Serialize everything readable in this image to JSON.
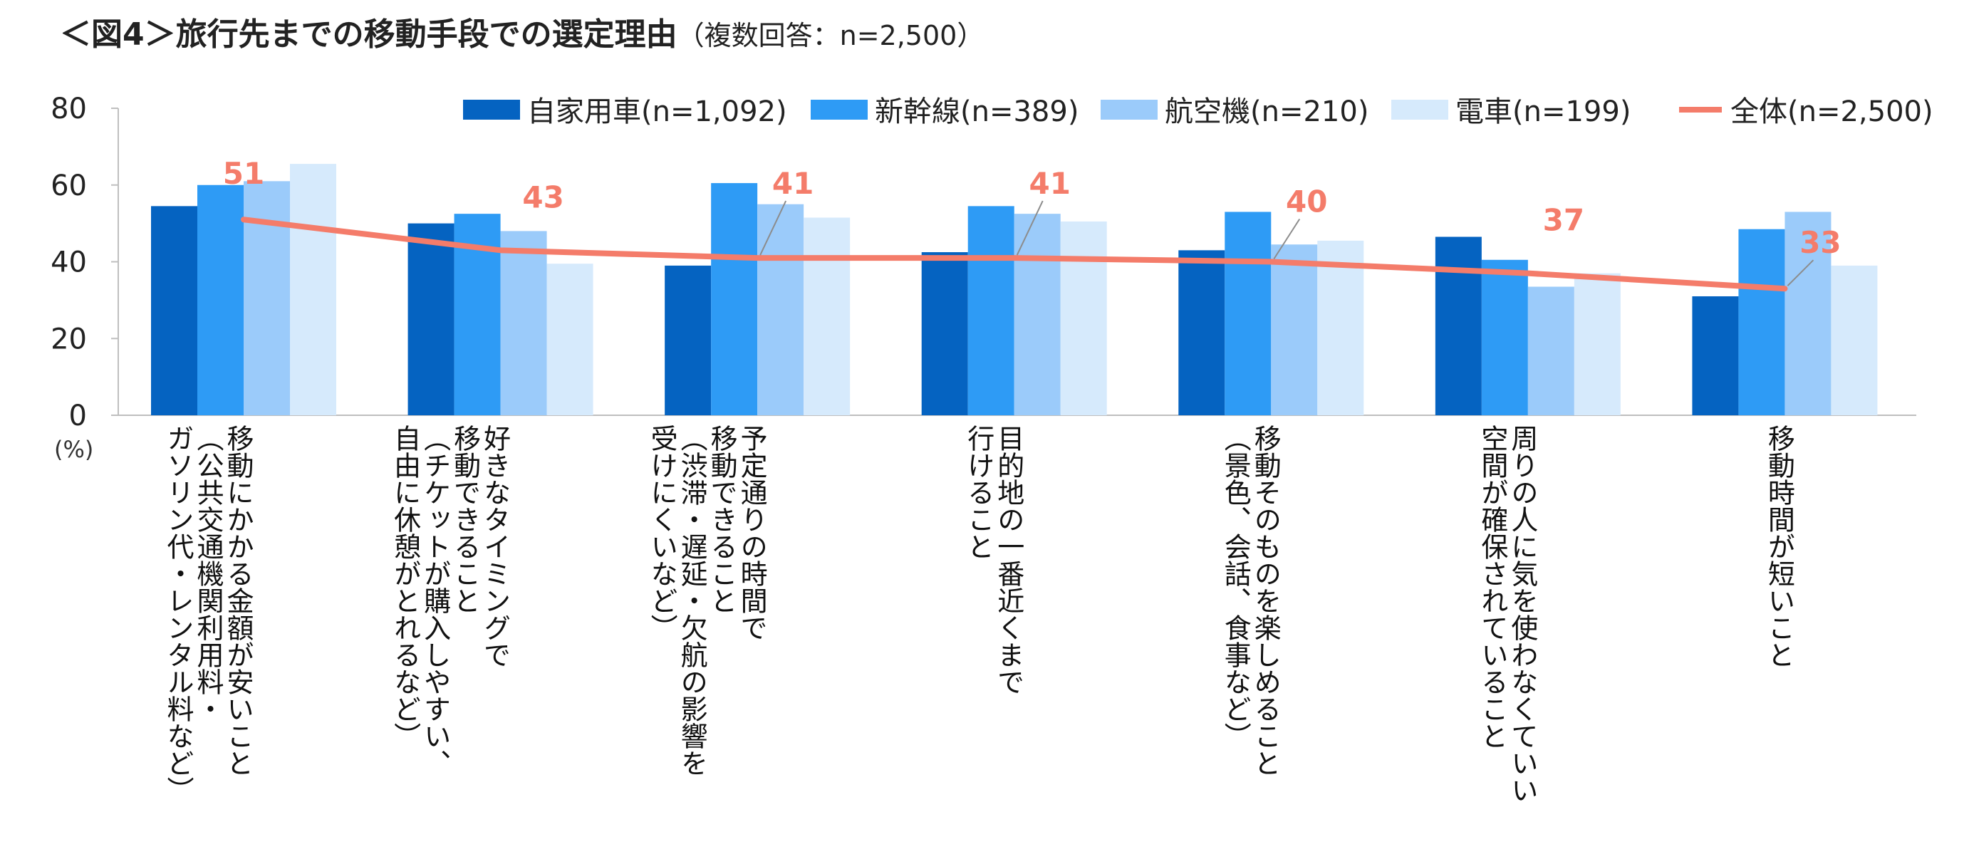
{
  "title": {
    "main": "＜図4＞旅行先までの移動手段での選定理由",
    "sub": "（複数回答：n=2,500）"
  },
  "colors": {
    "car": "#0563C1",
    "shinkansen": "#2E9BF5",
    "airplane": "#9BCBFA",
    "train": "#D6EAFC",
    "overall": "#F47C6A",
    "axis": "#BFBFBF"
  },
  "chart_data": {
    "type": "bar",
    "y_unit": "(%)",
    "ylim": [
      0,
      80
    ],
    "yticks": [
      0,
      20,
      40,
      60,
      80
    ],
    "grid": false,
    "legend_position": "top",
    "categories": [
      [
        "移動にかかる金額が安いこと",
        "（公共交通機関利用料・",
        "ガソリン代・レンタル料など）"
      ],
      [
        "好きなタイミングで",
        "移動できること",
        "（チケットが購入しやすい、",
        "自由に休憩がとれるなど）"
      ],
      [
        "予定通りの時間で",
        "移動できること",
        "（渋滞・遅延・欠航の影響を",
        "受けにくいなど）"
      ],
      [
        "目的地の一番近くまで",
        "行けること"
      ],
      [
        "移動そのものを楽しめること",
        "（景色、会話、食事など）"
      ],
      [
        "周りの人に気を使わなくていい",
        "空間が確保されていること"
      ],
      [
        "移動時間が短いこと"
      ]
    ],
    "series": [
      {
        "name": "自家用車(n=1,092)",
        "color_key": "car",
        "values": [
          54.5,
          50,
          39,
          42.5,
          43,
          46.5,
          31
        ]
      },
      {
        "name": "新幹線(n=389)",
        "color_key": "shinkansen",
        "values": [
          60,
          52.5,
          60.5,
          54.5,
          53,
          40.5,
          48.5
        ]
      },
      {
        "name": "航空機(n=210)",
        "color_key": "airplane",
        "values": [
          61,
          48,
          55,
          52.5,
          44.5,
          33.5,
          53
        ]
      },
      {
        "name": "電車(n=199)",
        "color_key": "train",
        "values": [
          65.5,
          39.5,
          51.5,
          50.5,
          45.5,
          37,
          39
        ]
      }
    ],
    "line": {
      "name": "全体(n=2,500)",
      "color_key": "overall",
      "values": [
        51,
        43,
        41,
        41,
        40,
        37,
        33
      ],
      "labels": [
        "51",
        "43",
        "41",
        "41",
        "40",
        "37",
        "33"
      ]
    }
  }
}
